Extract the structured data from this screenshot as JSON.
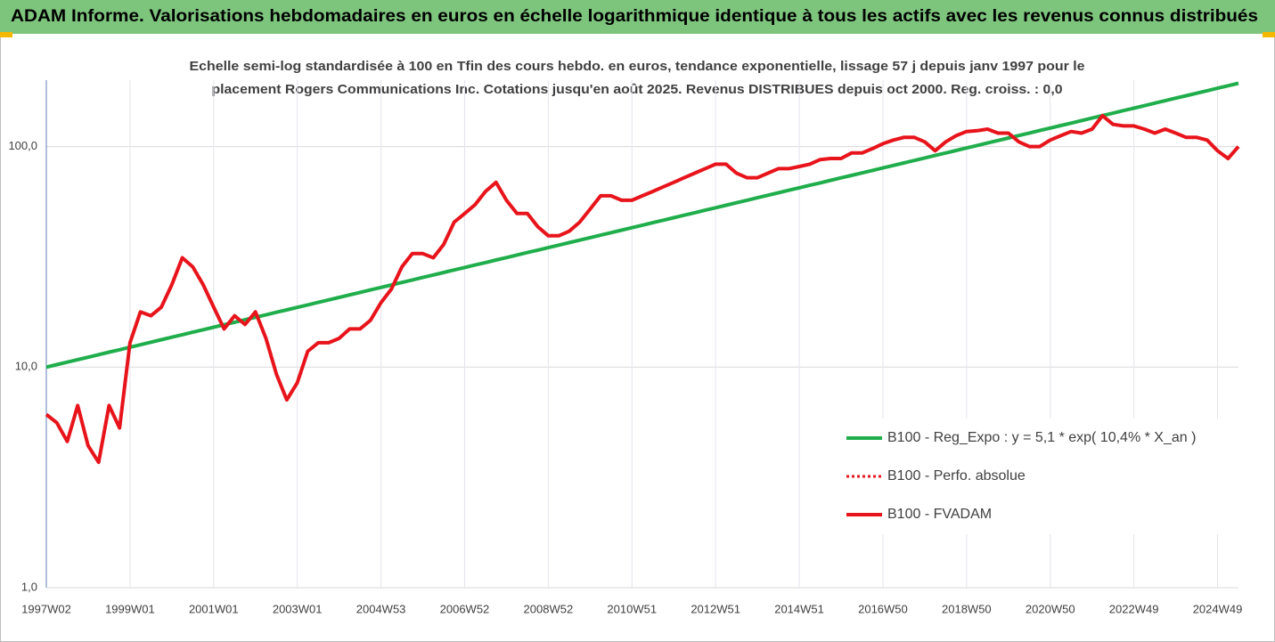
{
  "chart_data": {
    "type": "line",
    "title": "ADAM Informe. Valorisations hebdomadaires en euros en échelle logarithmique identique à tous les actifs avec les revenus connus distribués",
    "subtitle": [
      "Echelle semi-log standardisée à 100 en Tfin des cours hebdo. en euros, tendance exponentielle, lissage 57 j depuis janv 1997 pour le",
      "placement Rogers Communications Inc. Cotations jusqu'en août 2025. Revenus DISTRIBUES depuis oct 2000. Reg. croiss. : 0,0"
    ],
    "log_scale": true,
    "grid": true,
    "ylim": [
      1,
      200
    ],
    "yticks": [
      {
        "value": 1,
        "label": "1,0"
      },
      {
        "value": 10,
        "label": "10,0"
      },
      {
        "value": 100,
        "label": "100,0"
      }
    ],
    "categories": [
      "1997W02",
      null,
      null,
      null,
      null,
      null,
      null,
      null,
      "1999W01",
      null,
      null,
      null,
      null,
      null,
      null,
      null,
      "2001W01",
      null,
      null,
      null,
      null,
      null,
      null,
      null,
      "2003W01",
      null,
      null,
      null,
      null,
      null,
      null,
      null,
      "2004W53",
      null,
      null,
      null,
      null,
      null,
      null,
      null,
      "2006W52",
      null,
      null,
      null,
      null,
      null,
      null,
      null,
      "2008W52",
      null,
      null,
      null,
      null,
      null,
      null,
      null,
      "2010W51",
      null,
      null,
      null,
      null,
      null,
      null,
      null,
      "2012W51",
      null,
      null,
      null,
      null,
      null,
      null,
      null,
      "2014W51",
      null,
      null,
      null,
      null,
      null,
      null,
      null,
      "2016W50",
      null,
      null,
      null,
      null,
      null,
      null,
      null,
      "2018W50",
      null,
      null,
      null,
      null,
      null,
      null,
      null,
      "2020W50",
      null,
      null,
      null,
      null,
      null,
      null,
      null,
      "2022W49",
      null,
      null,
      null,
      null,
      null,
      null,
      null,
      "2024W49",
      null,
      null
    ],
    "series": [
      {
        "name": "B100 - Reg_Expo : y = 5,1 * exp( 10,4% *  X_an )",
        "color": "#1fae4b",
        "style": "solid",
        "values": [
          10.0,
          10.26,
          10.53,
          10.81,
          11.09,
          11.39,
          11.69,
          11.99,
          12.31,
          12.63,
          12.97,
          13.31,
          13.66,
          14.02,
          14.39,
          14.77,
          15.16,
          15.56,
          15.97,
          16.39,
          16.82,
          17.26,
          17.72,
          18.18,
          18.66,
          19.15,
          19.66,
          20.17,
          20.71,
          21.25,
          21.81,
          22.39,
          22.97,
          23.58,
          24.2,
          24.84,
          25.49,
          26.16,
          26.85,
          27.56,
          28.28,
          29.03,
          29.79,
          30.58,
          31.38,
          32.21,
          33.06,
          33.93,
          34.82,
          35.74,
          36.68,
          37.64,
          38.64,
          39.65,
          40.7,
          41.77,
          42.87,
          44.0,
          45.16,
          46.35,
          47.57,
          48.82,
          50.11,
          51.43,
          52.78,
          54.17,
          55.6,
          57.06,
          58.57,
          60.11,
          61.69,
          63.32,
          64.98,
          66.7,
          68.45,
          70.26,
          72.11,
          74.0,
          75.95,
          77.95,
          80.0,
          82.11,
          84.27,
          86.49,
          88.77,
          91.11,
          93.51,
          95.97,
          98.5,
          101.1,
          103.8,
          106.5,
          109.3,
          112.2,
          115.1,
          118.2,
          121.3,
          124.5,
          127.7,
          131.1,
          134.6,
          138.1,
          141.7,
          145.5,
          149.3,
          153.2,
          157.3,
          161.4,
          165.7,
          170.0,
          174.5,
          179.1,
          183.8,
          188.7,
          193.6
        ]
      },
      {
        "name": "B100 - Perfo. absolue",
        "color": "#e8141b",
        "style": "dotted"
      },
      {
        "name": "B100 - FVADAM",
        "color": "#e8141b",
        "style": "solid",
        "values": [
          6.1,
          5.6,
          4.6,
          6.7,
          4.4,
          3.7,
          6.7,
          5.3,
          12.9,
          17.8,
          17.1,
          18.7,
          23.6,
          31.3,
          28.5,
          23.6,
          18.7,
          14.9,
          17.1,
          15.6,
          17.8,
          13.5,
          9.3,
          7.1,
          8.5,
          11.8,
          12.9,
          12.9,
          13.5,
          14.9,
          14.9,
          16.3,
          19.6,
          22.6,
          28.5,
          32.7,
          32.7,
          31.3,
          36.0,
          45.4,
          49.7,
          54.5,
          62.6,
          68.8,
          57.1,
          49.7,
          49.7,
          43.3,
          39.4,
          39.4,
          41.3,
          45.4,
          52.0,
          59.8,
          59.8,
          57.1,
          57.1,
          59.8,
          62.6,
          65.7,
          68.8,
          72.2,
          75.7,
          79.4,
          83.2,
          83.2,
          75.7,
          72.2,
          72.2,
          75.7,
          79.4,
          79.4,
          81.2,
          83.2,
          87.3,
          88.3,
          88.3,
          93.5,
          93.5,
          97.9,
          103,
          107,
          110,
          110,
          105,
          95.7,
          105,
          112,
          117,
          118,
          120,
          115,
          115,
          105,
          100,
          100,
          107,
          112,
          117,
          115,
          120,
          138,
          126,
          124,
          124,
          120,
          115,
          120,
          115,
          110,
          110,
          107,
          95.7,
          88.3,
          100
        ]
      }
    ]
  }
}
